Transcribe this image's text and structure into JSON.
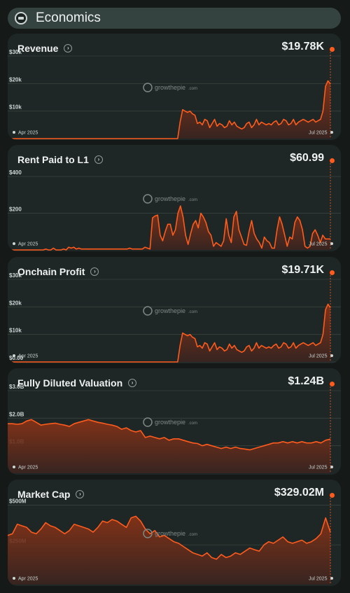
{
  "header": {
    "title": "Economics",
    "icon": "economics-icon"
  },
  "accent_color": "#fe5b1d",
  "watermark": {
    "brand": "growthepie",
    "suffix": ".com"
  },
  "cards": [
    {
      "title": "Revenue",
      "value": "$19.78K",
      "yticks": [
        "$30k",
        "$20k",
        "$10k"
      ],
      "xstart": "Apr 2025",
      "xend": "Jul 2025",
      "chart_data": {
        "type": "area",
        "ylim": [
          0,
          30000
        ],
        "x_start": "Apr 2025",
        "x_end": "Jul 2025",
        "values": [
          0,
          0,
          0,
          0,
          0,
          0,
          0,
          0,
          0,
          0,
          0,
          0,
          0,
          0,
          0,
          0,
          0,
          0,
          0,
          0,
          0,
          0,
          0,
          0,
          0,
          0,
          0,
          0,
          0,
          0,
          0,
          0,
          0,
          0,
          0,
          0,
          0,
          0,
          0,
          0,
          0,
          0,
          0,
          0,
          0,
          0,
          0,
          0,
          0,
          0,
          0,
          0,
          0,
          0,
          0,
          0,
          0,
          0,
          0,
          0,
          0,
          0,
          0,
          0,
          0,
          0,
          0,
          0,
          0,
          0,
          6000,
          10500,
          10000,
          9500,
          10000,
          9000,
          8500,
          5500,
          6000,
          5000,
          7000,
          6500,
          4000,
          5500,
          7000,
          4500,
          5500,
          5000,
          4000,
          4500,
          6500,
          5000,
          6000,
          4500,
          4000,
          3500,
          4000,
          5500,
          6000,
          4000,
          5000,
          7000,
          5000,
          6000,
          5500,
          5000,
          5500,
          5000,
          6000,
          6500,
          5000,
          5500,
          7000,
          6500,
          5000,
          5500,
          7000,
          5000,
          6000,
          6500,
          7000,
          6500,
          6000,
          6500,
          7000,
          6000,
          6500,
          7000,
          10000,
          19000,
          21000,
          19780
        ]
      }
    },
    {
      "title": "Rent Paid to L1",
      "value": "$60.99",
      "yticks": [
        "$400",
        "$200"
      ],
      "xstart": "Apr 2025",
      "xend": "Jul 2025",
      "chart_data": {
        "type": "area",
        "ylim": [
          0,
          450
        ],
        "x_start": "Apr 2025",
        "x_end": "Jul 2025",
        "values": [
          0,
          0,
          0,
          0,
          0,
          0,
          0,
          0,
          0,
          0,
          0,
          0,
          0,
          0,
          0,
          5,
          0,
          0,
          10,
          0,
          0,
          0,
          5,
          0,
          15,
          10,
          15,
          5,
          10,
          5,
          5,
          5,
          5,
          5,
          5,
          5,
          5,
          5,
          5,
          5,
          5,
          5,
          5,
          5,
          5,
          5,
          5,
          5,
          10,
          5,
          5,
          5,
          5,
          5,
          15,
          10,
          5,
          175,
          185,
          190,
          80,
          50,
          100,
          140,
          140,
          80,
          110,
          200,
          240,
          180,
          80,
          30,
          90,
          140,
          160,
          120,
          200,
          180,
          150,
          100,
          80,
          20,
          40,
          30,
          20,
          50,
          170,
          80,
          40,
          180,
          210,
          110,
          70,
          30,
          25,
          100,
          160,
          90,
          60,
          40,
          10,
          70,
          50,
          40,
          10,
          10,
          110,
          180,
          140,
          80,
          20,
          70,
          60,
          150,
          180,
          160,
          110,
          20,
          10,
          20,
          90,
          110,
          80,
          40,
          80,
          60,
          60,
          60
        ]
      }
    },
    {
      "title": "Onchain Profit",
      "value": "$19.71K",
      "yticks": [
        "$30k",
        "$20k",
        "$10k",
        "$0.00"
      ],
      "xstart": "Apr 2025",
      "xend": "Jul 2025",
      "chart_data": {
        "type": "area",
        "ylim": [
          0,
          30000
        ],
        "x_start": "Apr 2025",
        "x_end": "Jul 2025",
        "values": [
          0,
          0,
          0,
          0,
          0,
          0,
          0,
          0,
          0,
          0,
          0,
          0,
          0,
          0,
          0,
          0,
          0,
          0,
          0,
          0,
          0,
          0,
          0,
          0,
          0,
          0,
          0,
          0,
          0,
          0,
          0,
          0,
          0,
          0,
          0,
          0,
          0,
          0,
          0,
          0,
          0,
          0,
          0,
          0,
          0,
          0,
          0,
          0,
          0,
          0,
          0,
          0,
          0,
          0,
          0,
          0,
          0,
          0,
          0,
          0,
          0,
          0,
          0,
          0,
          0,
          0,
          0,
          0,
          0,
          0,
          6000,
          10500,
          10000,
          9500,
          10000,
          9000,
          8500,
          5500,
          6000,
          5000,
          7000,
          6500,
          4000,
          5500,
          7000,
          4500,
          5500,
          5000,
          4000,
          4500,
          6500,
          5000,
          6000,
          4500,
          4000,
          3500,
          4000,
          5500,
          6000,
          4000,
          5000,
          7000,
          5000,
          6000,
          5500,
          5000,
          5500,
          5000,
          6000,
          6500,
          5000,
          5500,
          7000,
          6500,
          5000,
          5500,
          7000,
          5000,
          6000,
          6500,
          7000,
          6500,
          6000,
          6500,
          7000,
          6000,
          6500,
          7000,
          10000,
          19000,
          21000,
          19710
        ]
      }
    },
    {
      "title": "Fully Diluted Valuation",
      "value": "$1.24B",
      "yticks": [
        "$3.0B",
        "$2.0B",
        "$1.0B"
      ],
      "xstart": "Apr 2025",
      "xend": "Jul 2025",
      "chart_data": {
        "type": "area",
        "ylim": [
          0,
          3000000000
        ],
        "x_start": "Apr 2025",
        "x_end": "Jul 2025",
        "values": [
          1800000000,
          1800000000,
          1780000000,
          1800000000,
          1900000000,
          1950000000,
          1850000000,
          1750000000,
          1780000000,
          1800000000,
          1820000000,
          1780000000,
          1750000000,
          1700000000,
          1800000000,
          1850000000,
          1900000000,
          1950000000,
          1900000000,
          1850000000,
          1820000000,
          1780000000,
          1750000000,
          1700000000,
          1600000000,
          1650000000,
          1550000000,
          1500000000,
          1550000000,
          1300000000,
          1350000000,
          1300000000,
          1250000000,
          1300000000,
          1200000000,
          1250000000,
          1250000000,
          1200000000,
          1150000000,
          1100000000,
          1080000000,
          1000000000,
          1050000000,
          1000000000,
          950000000,
          900000000,
          950000000,
          900000000,
          950000000,
          900000000,
          880000000,
          850000000,
          900000000,
          950000000,
          1000000000,
          1050000000,
          1100000000,
          1100000000,
          1150000000,
          1100000000,
          1150000000,
          1100000000,
          1150000000,
          1100000000,
          1100000000,
          1150000000,
          1100000000,
          1200000000,
          1240000000
        ]
      }
    },
    {
      "title": "Market Cap",
      "value": "$329.02M",
      "yticks": [
        "$500M",
        "$250M"
      ],
      "xstart": "Apr 2025",
      "xend": "Jul 2025",
      "chart_data": {
        "type": "area",
        "ylim": [
          0,
          520000000
        ],
        "x_start": "Apr 2025",
        "x_end": "Jul 2025",
        "values": [
          310000000,
          320000000,
          380000000,
          370000000,
          360000000,
          330000000,
          320000000,
          350000000,
          390000000,
          370000000,
          360000000,
          340000000,
          320000000,
          340000000,
          380000000,
          370000000,
          360000000,
          350000000,
          330000000,
          360000000,
          400000000,
          390000000,
          410000000,
          400000000,
          380000000,
          360000000,
          420000000,
          430000000,
          400000000,
          350000000,
          320000000,
          340000000,
          300000000,
          310000000,
          290000000,
          270000000,
          260000000,
          240000000,
          220000000,
          200000000,
          190000000,
          180000000,
          200000000,
          170000000,
          160000000,
          190000000,
          170000000,
          180000000,
          200000000,
          190000000,
          210000000,
          230000000,
          220000000,
          210000000,
          250000000,
          270000000,
          260000000,
          280000000,
          300000000,
          270000000,
          260000000,
          270000000,
          280000000,
          260000000,
          270000000,
          290000000,
          320000000,
          420000000,
          329020000
        ]
      }
    }
  ]
}
